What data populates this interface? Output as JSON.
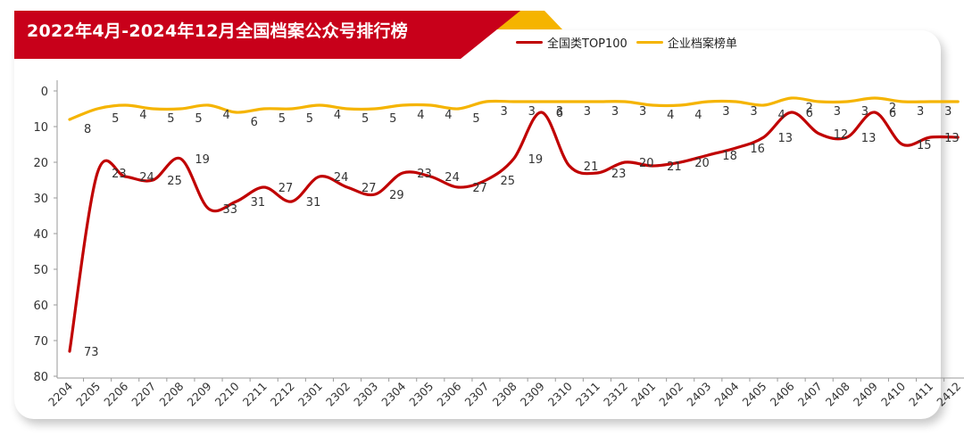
{
  "header": {
    "title": "2022年4月-2024年12月全国档案公众号排行榜"
  },
  "colors": {
    "banner_red": "#c8001a",
    "banner_accent": "#f5b400",
    "national_line": "#c00000",
    "enterprise_line": "#f5b400"
  },
  "chart_data": {
    "type": "line",
    "title": "2022年4月-2024年12月全国档案公众号排行榜",
    "xlabel": "",
    "ylabel": "",
    "y_inverted": true,
    "ylim": [
      0,
      80
    ],
    "yticks": [
      0,
      10,
      20,
      30,
      40,
      50,
      60,
      70,
      80
    ],
    "grid": false,
    "legend_position": "top-right",
    "categories": [
      "2204",
      "2205",
      "2206",
      "2207",
      "2208",
      "2209",
      "2210",
      "2211",
      "2212",
      "2301",
      "2302",
      "2303",
      "2304",
      "2305",
      "2306",
      "2307",
      "2308",
      "2309",
      "2310",
      "2311",
      "2312",
      "2401",
      "2402",
      "2403",
      "2404",
      "2405",
      "2406",
      "2407",
      "2408",
      "2409",
      "2410",
      "2411",
      "2412"
    ],
    "series": [
      {
        "name": "全国类TOP100",
        "color": "#c00000",
        "values": [
          73,
          23,
          24,
          25,
          19,
          33,
          31,
          27,
          31,
          24,
          27,
          29,
          23,
          24,
          27,
          25,
          19,
          6,
          21,
          23,
          20,
          21,
          20,
          18,
          16,
          13,
          6,
          12,
          13,
          6,
          15,
          13,
          13
        ]
      },
      {
        "name": "企业档案榜单",
        "color": "#f5b400",
        "values": [
          8,
          5,
          4,
          5,
          5,
          4,
          6,
          5,
          5,
          4,
          5,
          5,
          4,
          4,
          5,
          3,
          3,
          3,
          3,
          3,
          3,
          4,
          4,
          3,
          3,
          4,
          2,
          3,
          3,
          2,
          3,
          3,
          3
        ]
      }
    ]
  }
}
